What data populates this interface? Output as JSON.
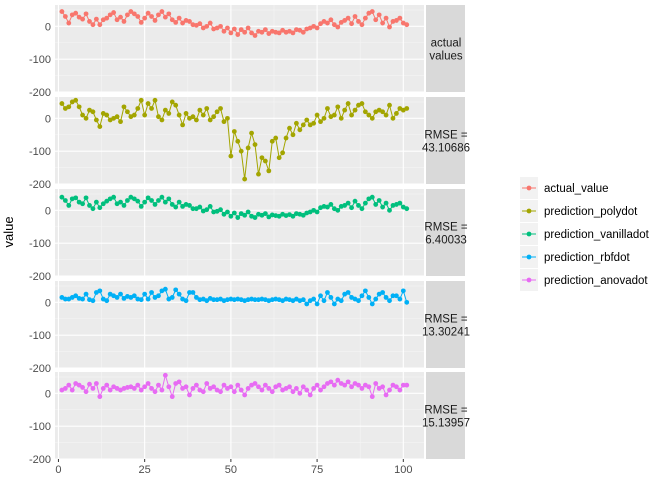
{
  "chart_data": {
    "type": "line",
    "ylabel": "value",
    "xlabel": "",
    "xlim": [
      -1,
      106
    ],
    "ylim": [
      -200,
      65
    ],
    "x_ticks": [
      0,
      25,
      50,
      75,
      100
    ],
    "y_ticks": [
      0,
      -100,
      -200
    ],
    "grid": true,
    "legend_position": "right",
    "facets": [
      {
        "series": "actual_value",
        "strip": [
          "actual",
          "values"
        ]
      },
      {
        "series": "prediction_polydot",
        "strip": [
          "RMSE =",
          "43.10686"
        ]
      },
      {
        "series": "prediction_vanilladot",
        "strip": [
          "RMSE =",
          "6.40033"
        ]
      },
      {
        "series": "prediction_rbfdot",
        "strip": [
          "RMSE =",
          "13.30241"
        ]
      },
      {
        "series": "prediction_anovadot",
        "strip": [
          "RMSE =",
          "15.13957"
        ]
      }
    ],
    "series": [
      {
        "name": "actual_value",
        "color": "#F8766D",
        "x": [
          1,
          2,
          3,
          4,
          5,
          6,
          7,
          8,
          9,
          10,
          11,
          12,
          13,
          14,
          15,
          16,
          17,
          18,
          19,
          20,
          21,
          22,
          23,
          24,
          25,
          26,
          27,
          28,
          29,
          30,
          31,
          32,
          33,
          34,
          35,
          36,
          37,
          38,
          39,
          40,
          41,
          42,
          43,
          44,
          45,
          46,
          47,
          48,
          49,
          50,
          51,
          52,
          53,
          54,
          55,
          56,
          57,
          58,
          59,
          60,
          61,
          62,
          63,
          64,
          65,
          66,
          67,
          68,
          69,
          70,
          71,
          72,
          73,
          74,
          75,
          76,
          77,
          78,
          79,
          80,
          81,
          82,
          83,
          84,
          85,
          86,
          87,
          88,
          89,
          90,
          91,
          92,
          93,
          94,
          95,
          96,
          97,
          98,
          99,
          100,
          101
        ],
        "values": [
          45,
          30,
          10,
          35,
          40,
          28,
          22,
          38,
          15,
          5,
          22,
          5,
          20,
          25,
          35,
          42,
          20,
          28,
          15,
          35,
          45,
          38,
          30,
          12,
          25,
          40,
          30,
          18,
          35,
          45,
          28,
          38,
          20,
          12,
          25,
          10,
          18,
          15,
          5,
          3,
          8,
          -5,
          0,
          10,
          -8,
          -5,
          0,
          -15,
          -5,
          -20,
          -8,
          -25,
          -10,
          -18,
          -5,
          -20,
          -28,
          -15,
          -18,
          -10,
          -22,
          -15,
          -18,
          -20,
          -12,
          -18,
          -15,
          -20,
          -10,
          -12,
          -18,
          -8,
          -5,
          0,
          -5,
          8,
          15,
          10,
          20,
          5,
          -2,
          12,
          18,
          25,
          8,
          30,
          15,
          5,
          25,
          40,
          45,
          20,
          35,
          10,
          25,
          -2,
          15,
          18,
          25,
          10,
          5
        ]
      },
      {
        "name": "prediction_polydot",
        "color": "#A3A500",
        "x": [
          1,
          2,
          3,
          4,
          5,
          6,
          7,
          8,
          9,
          10,
          11,
          12,
          13,
          14,
          15,
          16,
          17,
          18,
          19,
          20,
          21,
          22,
          23,
          24,
          25,
          26,
          27,
          28,
          29,
          30,
          31,
          32,
          33,
          34,
          35,
          36,
          37,
          38,
          39,
          40,
          41,
          42,
          43,
          44,
          45,
          46,
          47,
          48,
          49,
          50,
          51,
          52,
          53,
          54,
          55,
          56,
          57,
          58,
          59,
          60,
          61,
          62,
          63,
          64,
          65,
          66,
          67,
          68,
          69,
          70,
          71,
          72,
          73,
          74,
          75,
          76,
          77,
          78,
          79,
          80,
          81,
          82,
          83,
          84,
          85,
          86,
          87,
          88,
          89,
          90,
          91,
          92,
          93,
          94,
          95,
          96,
          97,
          98,
          99,
          100,
          101
        ],
        "values": [
          45,
          30,
          35,
          50,
          55,
          35,
          10,
          0,
          25,
          20,
          -5,
          -25,
          15,
          10,
          -5,
          0,
          5,
          -10,
          35,
          20,
          5,
          10,
          30,
          55,
          10,
          45,
          30,
          55,
          5,
          -5,
          25,
          15,
          50,
          40,
          10,
          -20,
          15,
          0,
          5,
          -5,
          25,
          10,
          30,
          -5,
          5,
          20,
          30,
          -10,
          0,
          -115,
          -40,
          -70,
          -100,
          -185,
          -90,
          -45,
          -80,
          -170,
          -120,
          -130,
          -160,
          -70,
          -60,
          -120,
          -105,
          -60,
          -30,
          -50,
          -15,
          -35,
          -20,
          -5,
          -20,
          -15,
          10,
          -10,
          0,
          30,
          5,
          10,
          35,
          0,
          25,
          45,
          10,
          25,
          40,
          45,
          20,
          10,
          0,
          20,
          25,
          20,
          10,
          40,
          0,
          15,
          30,
          25,
          30
        ]
      },
      {
        "name": "prediction_vanilladot",
        "color": "#00BF7D",
        "x": [
          1,
          2,
          3,
          4,
          5,
          6,
          7,
          8,
          9,
          10,
          11,
          12,
          13,
          14,
          15,
          16,
          17,
          18,
          19,
          20,
          21,
          22,
          23,
          24,
          25,
          26,
          27,
          28,
          29,
          30,
          31,
          32,
          33,
          34,
          35,
          36,
          37,
          38,
          39,
          40,
          41,
          42,
          43,
          44,
          45,
          46,
          47,
          48,
          49,
          50,
          51,
          52,
          53,
          54,
          55,
          56,
          57,
          58,
          59,
          60,
          61,
          62,
          63,
          64,
          65,
          66,
          67,
          68,
          69,
          70,
          71,
          72,
          73,
          74,
          75,
          76,
          77,
          78,
          79,
          80,
          81,
          82,
          83,
          84,
          85,
          86,
          87,
          88,
          89,
          90,
          91,
          92,
          93,
          94,
          95,
          96,
          97,
          98,
          99,
          100,
          101
        ],
        "values": [
          40,
          30,
          15,
          35,
          38,
          25,
          20,
          38,
          15,
          5,
          25,
          8,
          20,
          28,
          35,
          40,
          20,
          25,
          15,
          30,
          40,
          35,
          28,
          12,
          25,
          38,
          30,
          18,
          30,
          40,
          25,
          35,
          18,
          10,
          25,
          12,
          18,
          15,
          5,
          5,
          10,
          -2,
          2,
          12,
          -5,
          -3,
          2,
          -12,
          -5,
          -18,
          -8,
          -22,
          -10,
          -15,
          -5,
          -18,
          -22,
          -12,
          -15,
          -10,
          -20,
          -14,
          -16,
          -18,
          -12,
          -16,
          -13,
          -18,
          -10,
          -12,
          -15,
          -8,
          -5,
          0,
          -5,
          8,
          12,
          10,
          18,
          5,
          0,
          12,
          15,
          22,
          8,
          28,
          15,
          5,
          22,
          35,
          40,
          18,
          30,
          10,
          22,
          0,
          15,
          18,
          22,
          10,
          5
        ]
      },
      {
        "name": "prediction_rbfdot",
        "color": "#00B0F6",
        "x": [
          1,
          2,
          3,
          4,
          5,
          6,
          7,
          8,
          9,
          10,
          11,
          12,
          13,
          14,
          15,
          16,
          17,
          18,
          19,
          20,
          21,
          22,
          23,
          24,
          25,
          26,
          27,
          28,
          29,
          30,
          31,
          32,
          33,
          34,
          35,
          36,
          37,
          38,
          39,
          40,
          41,
          42,
          43,
          44,
          45,
          46,
          47,
          48,
          49,
          50,
          51,
          52,
          53,
          54,
          55,
          56,
          57,
          58,
          59,
          60,
          61,
          62,
          63,
          64,
          65,
          66,
          67,
          68,
          69,
          70,
          71,
          72,
          73,
          74,
          75,
          76,
          77,
          78,
          79,
          80,
          81,
          82,
          83,
          84,
          85,
          86,
          87,
          88,
          89,
          90,
          91,
          92,
          93,
          94,
          95,
          96,
          97,
          98,
          99,
          100,
          101
        ],
        "values": [
          15,
          10,
          10,
          15,
          20,
          12,
          10,
          25,
          8,
          5,
          30,
          35,
          10,
          5,
          25,
          20,
          15,
          25,
          12,
          18,
          15,
          20,
          10,
          8,
          25,
          10,
          30,
          15,
          20,
          35,
          40,
          10,
          15,
          38,
          25,
          10,
          5,
          30,
          30,
          15,
          8,
          10,
          5,
          12,
          8,
          8,
          10,
          5,
          8,
          10,
          8,
          10,
          8,
          5,
          8,
          10,
          8,
          8,
          10,
          8,
          5,
          8,
          10,
          8,
          5,
          10,
          8,
          5,
          10,
          5,
          8,
          -5,
          5,
          10,
          -5,
          20,
          5,
          30,
          15,
          -5,
          10,
          5,
          25,
          30,
          15,
          10,
          5,
          20,
          35,
          15,
          -5,
          10,
          25,
          30,
          15,
          5,
          20,
          20,
          10,
          35,
          0
        ]
      },
      {
        "name": "prediction_anovadot",
        "color": "#E76BF3",
        "x": [
          1,
          2,
          3,
          4,
          5,
          6,
          7,
          8,
          9,
          10,
          11,
          12,
          13,
          14,
          15,
          16,
          17,
          18,
          19,
          20,
          21,
          22,
          23,
          24,
          25,
          26,
          27,
          28,
          29,
          30,
          31,
          32,
          33,
          34,
          35,
          36,
          37,
          38,
          39,
          40,
          41,
          42,
          43,
          44,
          45,
          46,
          47,
          48,
          49,
          50,
          51,
          52,
          53,
          54,
          55,
          56,
          57,
          58,
          59,
          60,
          61,
          62,
          63,
          64,
          65,
          66,
          67,
          68,
          69,
          70,
          71,
          72,
          73,
          74,
          75,
          76,
          77,
          78,
          79,
          80,
          81,
          82,
          83,
          84,
          85,
          86,
          87,
          88,
          89,
          90,
          91,
          92,
          93,
          94,
          95,
          96,
          97,
          98,
          99,
          100,
          101
        ],
        "values": [
          10,
          15,
          25,
          10,
          30,
          25,
          18,
          5,
          28,
          15,
          30,
          -10,
          15,
          25,
          10,
          20,
          15,
          10,
          15,
          18,
          20,
          15,
          25,
          10,
          20,
          30,
          15,
          5,
          25,
          10,
          55,
          20,
          -10,
          30,
          35,
          15,
          20,
          -5,
          15,
          25,
          10,
          5,
          30,
          15,
          20,
          10,
          5,
          25,
          15,
          20,
          5,
          25,
          10,
          -5,
          15,
          25,
          30,
          20,
          10,
          25,
          15,
          5,
          20,
          25,
          10,
          15,
          20,
          5,
          15,
          0,
          20,
          10,
          -5,
          15,
          25,
          10,
          20,
          30,
          35,
          25,
          40,
          30,
          25,
          35,
          20,
          30,
          25,
          15,
          25,
          20,
          -10,
          30,
          15,
          20,
          -5,
          10,
          25,
          20,
          10,
          25,
          25
        ]
      }
    ]
  }
}
